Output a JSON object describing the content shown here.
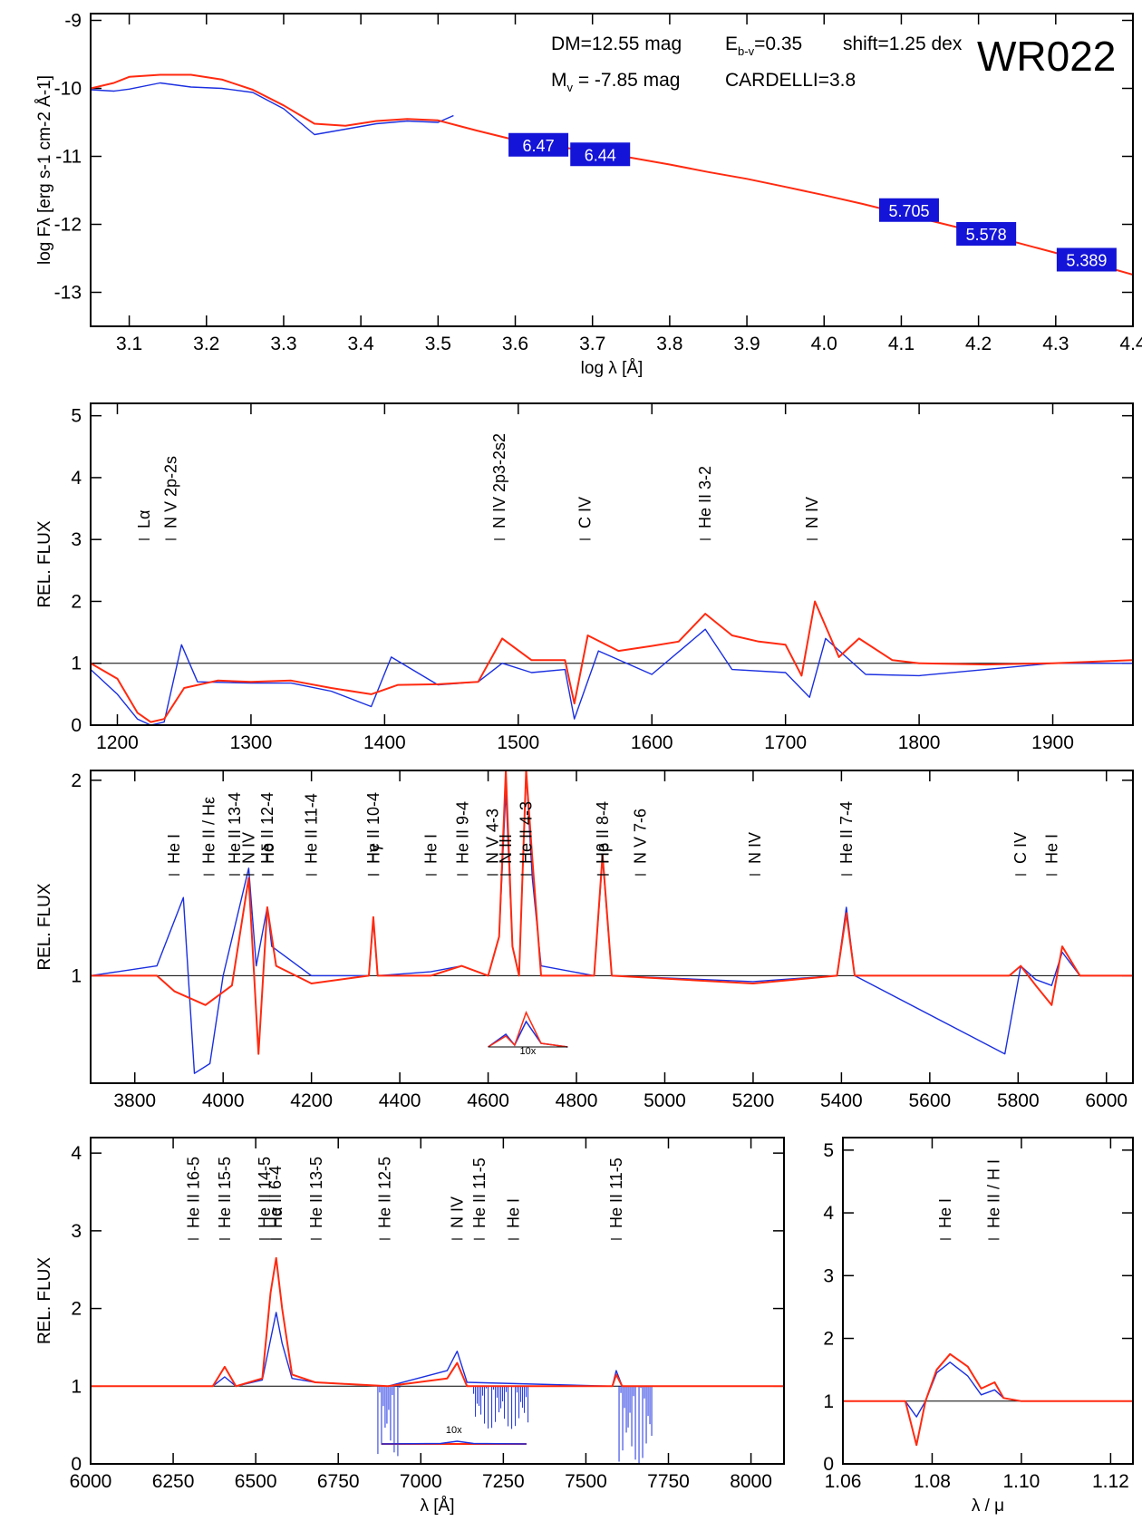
{
  "colors": {
    "model": "#ff2a10",
    "observed": "#1a2fe0",
    "label_box": "#1414d8",
    "axis": "#000000"
  },
  "chart_data": [
    {
      "type": "line",
      "id": "sed",
      "object": "WR022",
      "xlabel": "log λ [Å]",
      "ylabel": "log Fλ [erg s-1 cm-2 Å-1]",
      "xlim": [
        3.05,
        4.4
      ],
      "ylim": [
        -13.5,
        -8.9
      ],
      "xticks": [
        "3.1",
        "3.2",
        "3.3",
        "3.4",
        "3.5",
        "3.6",
        "3.7",
        "3.8",
        "3.9",
        "4.0",
        "4.1",
        "4.2",
        "4.3",
        "4.4"
      ],
      "yticks": [
        "-9",
        "-10",
        "-11",
        "-12",
        "-13"
      ],
      "info": {
        "dm": "DM=12.55 mag",
        "mv": "M",
        "mv_sub": "v",
        "mv_val": " = -7.85 mag",
        "ebv": "E",
        "ebv_sub": "b-v",
        "ebv_val": "=0.35",
        "cardelli": "CARDELLI=3.8",
        "shift": "shift=1.25 dex"
      },
      "photometry": [
        {
          "x": 3.63,
          "y": -10.83,
          "label": "6.47"
        },
        {
          "x": 3.71,
          "y": -10.97,
          "label": "6.44"
        },
        {
          "x": 4.11,
          "y": -11.79,
          "label": "5.705"
        },
        {
          "x": 4.21,
          "y": -12.14,
          "label": "5.578"
        },
        {
          "x": 4.34,
          "y": -12.52,
          "label": "5.389"
        }
      ],
      "series": [
        {
          "role": "model",
          "x": [
            3.05,
            3.08,
            3.1,
            3.14,
            3.18,
            3.22,
            3.26,
            3.3,
            3.34,
            3.38,
            3.42,
            3.46,
            3.5,
            3.55,
            3.6,
            3.65,
            3.7,
            3.75,
            3.8,
            3.85,
            3.9,
            3.95,
            4.0,
            4.05,
            4.1,
            4.15,
            4.2,
            4.25,
            4.3,
            4.35,
            4.4
          ],
          "y": [
            -10.0,
            -9.92,
            -9.83,
            -9.8,
            -9.8,
            -9.87,
            -10.02,
            -10.25,
            -10.52,
            -10.55,
            -10.48,
            -10.45,
            -10.47,
            -10.62,
            -10.76,
            -10.85,
            -10.93,
            -11.02,
            -11.12,
            -11.23,
            -11.33,
            -11.45,
            -11.57,
            -11.7,
            -11.84,
            -11.98,
            -12.12,
            -12.27,
            -12.42,
            -12.58,
            -12.74
          ]
        },
        {
          "role": "observed",
          "x": [
            3.05,
            3.08,
            3.1,
            3.14,
            3.18,
            3.22,
            3.26,
            3.3,
            3.34,
            3.38,
            3.42,
            3.46,
            3.5,
            3.52
          ],
          "y": [
            -10.02,
            -10.04,
            -10.01,
            -9.92,
            -9.98,
            -10.0,
            -10.06,
            -10.3,
            -10.68,
            -10.6,
            -10.52,
            -10.48,
            -10.5,
            -10.4
          ]
        }
      ]
    },
    {
      "type": "line",
      "id": "uv",
      "ylabel": "REL. FLUX",
      "xlim": [
        1180,
        1960
      ],
      "ylim": [
        0,
        5.2
      ],
      "xticks": [
        "1200",
        "1300",
        "1400",
        "1500",
        "1600",
        "1700",
        "1800",
        "1900"
      ],
      "yticks": [
        "0",
        "1",
        "2",
        "3",
        "4",
        "5"
      ],
      "lines": [
        {
          "x": 1220,
          "label": "Lα"
        },
        {
          "x": 1240,
          "label": "N V 2p-2s"
        },
        {
          "x": 1486,
          "label": "N IV 2p3-2s2"
        },
        {
          "x": 1550,
          "label": "C IV"
        },
        {
          "x": 1640,
          "label": "He II 3-2"
        },
        {
          "x": 1720,
          "label": "N IV"
        }
      ],
      "series": [
        {
          "role": "model",
          "x": [
            1180,
            1200,
            1215,
            1225,
            1235,
            1250,
            1275,
            1300,
            1330,
            1360,
            1390,
            1410,
            1440,
            1470,
            1488,
            1510,
            1535,
            1542,
            1552,
            1575,
            1600,
            1620,
            1640,
            1660,
            1680,
            1700,
            1712,
            1722,
            1740,
            1755,
            1780,
            1800,
            1850,
            1900,
            1960
          ],
          "y": [
            1.0,
            0.75,
            0.2,
            0.05,
            0.1,
            0.6,
            0.72,
            0.7,
            0.72,
            0.6,
            0.5,
            0.65,
            0.66,
            0.7,
            1.4,
            1.05,
            1.05,
            0.35,
            1.45,
            1.2,
            1.28,
            1.35,
            1.8,
            1.45,
            1.35,
            1.3,
            0.8,
            2.0,
            1.1,
            1.4,
            1.05,
            1.0,
            0.98,
            1.0,
            1.05
          ]
        },
        {
          "role": "observed",
          "x": [
            1180,
            1200,
            1215,
            1225,
            1235,
            1248,
            1260,
            1300,
            1330,
            1360,
            1390,
            1405,
            1440,
            1470,
            1488,
            1510,
            1535,
            1542,
            1560,
            1600,
            1640,
            1660,
            1700,
            1718,
            1730,
            1760,
            1800,
            1850,
            1900,
            1960
          ],
          "y": [
            0.9,
            0.5,
            0.1,
            0.0,
            0.05,
            1.3,
            0.7,
            0.68,
            0.68,
            0.55,
            0.3,
            1.1,
            0.65,
            0.7,
            1.0,
            0.85,
            0.9,
            0.1,
            1.2,
            0.82,
            1.55,
            0.9,
            0.85,
            0.45,
            1.4,
            0.82,
            0.8,
            0.9,
            1.0,
            1.0
          ]
        }
      ]
    },
    {
      "type": "line",
      "id": "optical",
      "ylabel": "REL. FLUX",
      "xlim": [
        3700,
        6060
      ],
      "ylim": [
        0.45,
        2.05
      ],
      "xticks": [
        "3800",
        "4000",
        "4200",
        "4400",
        "4600",
        "4800",
        "5000",
        "5200",
        "5400",
        "5600",
        "5800",
        "6000"
      ],
      "yticks": [
        "1",
        "2"
      ],
      "inset_label": "10x",
      "lines": [
        {
          "x": 3889,
          "label": "He I"
        },
        {
          "x": 3968,
          "label": "He II / Hε"
        },
        {
          "x": 4026,
          "label": "He II 13-4"
        },
        {
          "x": 4058,
          "label": "N IV"
        },
        {
          "x": 4100,
          "label": "He II 12-4"
        },
        {
          "x": 4102,
          "label": "Hδ"
        },
        {
          "x": 4200,
          "label": "He II 11-4"
        },
        {
          "x": 4340,
          "label": "He II 10-4"
        },
        {
          "x": 4341,
          "label": "Hγ"
        },
        {
          "x": 4471,
          "label": "He I"
        },
        {
          "x": 4542,
          "label": "He II 9-4"
        },
        {
          "x": 4610,
          "label": "N V 4-3"
        },
        {
          "x": 4640,
          "label": "N III"
        },
        {
          "x": 4686,
          "label": "He II 4-3"
        },
        {
          "x": 4859,
          "label": "He II 8-4"
        },
        {
          "x": 4861,
          "label": "Hβ"
        },
        {
          "x": 4945,
          "label": "N V 7-6"
        },
        {
          "x": 5204,
          "label": "N IV"
        },
        {
          "x": 5412,
          "label": "He II 7-4"
        },
        {
          "x": 5806,
          "label": "C IV"
        },
        {
          "x": 5876,
          "label": "He I"
        }
      ],
      "series": [
        {
          "role": "model",
          "x": [
            3700,
            3850,
            3890,
            3960,
            4020,
            4058,
            4080,
            4100,
            4120,
            4200,
            4330,
            4340,
            4350,
            4470,
            4540,
            4600,
            4625,
            4640,
            4655,
            4670,
            4686,
            4700,
            4720,
            4840,
            4859,
            4880,
            5200,
            5390,
            5411,
            5430,
            5780,
            5806,
            5840,
            5876,
            5900,
            5940,
            6060
          ],
          "y": [
            1.0,
            1.0,
            0.92,
            0.85,
            0.95,
            1.5,
            0.6,
            1.35,
            1.05,
            0.96,
            1.0,
            1.3,
            1.0,
            1.0,
            1.05,
            1.0,
            1.2,
            2.05,
            1.15,
            1.0,
            2.05,
            1.6,
            1.0,
            1.0,
            1.62,
            1.0,
            0.96,
            1.0,
            1.32,
            1.0,
            1.0,
            1.05,
            0.95,
            0.85,
            1.15,
            1.0,
            1.0
          ]
        },
        {
          "role": "observed",
          "x": [
            3700,
            3850,
            3910,
            3935,
            3970,
            4000,
            4058,
            4075,
            4100,
            4110,
            4200,
            4330,
            4340,
            4350,
            4470,
            4540,
            4600,
            4625,
            4640,
            4655,
            4670,
            4686,
            4700,
            4720,
            4840,
            4859,
            4880,
            5200,
            5390,
            5411,
            5430,
            5770,
            5806,
            5840,
            5876,
            5900,
            5940,
            6060
          ],
          "y": [
            1.0,
            1.05,
            1.4,
            0.5,
            0.55,
            1.0,
            1.55,
            1.05,
            1.35,
            1.15,
            1.0,
            1.0,
            1.28,
            1.0,
            1.02,
            1.05,
            1.0,
            1.2,
            1.95,
            1.15,
            1.0,
            2.05,
            1.5,
            1.05,
            1.0,
            1.6,
            1.0,
            0.97,
            1.0,
            1.35,
            1.0,
            0.6,
            1.05,
            0.98,
            0.95,
            1.12,
            1.0,
            1.0
          ]
        }
      ],
      "inset_x": [
        4600,
        4640,
        4660,
        4686,
        4720,
        4780
      ],
      "inset_model": [
        0.0,
        0.3,
        0.05,
        0.95,
        0.1,
        0.0
      ],
      "inset_observed": [
        0.0,
        0.35,
        0.05,
        0.7,
        0.1,
        0.0
      ]
    },
    {
      "type": "line",
      "id": "red",
      "ylabel": "REL. FLUX",
      "xlabel": "λ [Å]",
      "xlim": [
        6000,
        8100
      ],
      "ylim": [
        0,
        4.2
      ],
      "xticks": [
        "6000",
        "6250",
        "6500",
        "6750",
        "7000",
        "7250",
        "7500",
        "7750",
        "8000"
      ],
      "yticks": [
        "0",
        "1",
        "2",
        "3",
        "4"
      ],
      "inset_label": "10x",
      "lines": [
        {
          "x": 6311,
          "label": "He II 16-5"
        },
        {
          "x": 6406,
          "label": "He II 15-5"
        },
        {
          "x": 6527,
          "label": "He II 14-5"
        },
        {
          "x": 6560,
          "label": "He II 6-4"
        },
        {
          "x": 6563,
          "label": "Hα"
        },
        {
          "x": 6683,
          "label": "He II 13-5"
        },
        {
          "x": 6891,
          "label": "He II 12-5"
        },
        {
          "x": 7110,
          "label": "N IV"
        },
        {
          "x": 7177,
          "label": "He II 11-5"
        },
        {
          "x": 7281,
          "label": "He I"
        },
        {
          "x": 7592,
          "label": "He II 11-5"
        }
      ],
      "series": [
        {
          "role": "model",
          "x": [
            6000,
            6370,
            6406,
            6440,
            6520,
            6545,
            6562,
            6580,
            6610,
            6680,
            6900,
            7080,
            7110,
            7140,
            7580,
            7592,
            7610,
            8100
          ],
          "y": [
            1.0,
            1.0,
            1.25,
            1.0,
            1.1,
            2.2,
            2.65,
            2.0,
            1.15,
            1.05,
            1.0,
            1.1,
            1.3,
            1.0,
            1.0,
            1.15,
            1.0,
            1.0
          ]
        },
        {
          "role": "observed",
          "x": [
            6000,
            6370,
            6406,
            6440,
            6520,
            6545,
            6562,
            6580,
            6610,
            6680,
            6900,
            7080,
            7110,
            7140,
            7580,
            7592,
            7610,
            8100
          ],
          "y": [
            1.0,
            1.0,
            1.12,
            1.0,
            1.08,
            1.6,
            1.95,
            1.55,
            1.1,
            1.05,
            1.0,
            1.2,
            1.45,
            1.05,
            1.0,
            1.2,
            1.0,
            1.0
          ]
        }
      ],
      "telluric": [
        {
          "from": 6870,
          "to": 6940,
          "depth": 0.1
        },
        {
          "from": 7160,
          "to": 7330,
          "depth": 0.45
        },
        {
          "from": 7595,
          "to": 7700,
          "depth": 0.0
        }
      ]
    },
    {
      "type": "line",
      "id": "ir",
      "xlabel": "λ / μ",
      "xlim": [
        1.06,
        1.125
      ],
      "ylim": [
        0,
        5.2
      ],
      "xticks": [
        "1.06",
        "1.08",
        "1.10",
        "1.12"
      ],
      "yticks": [
        "0",
        "1",
        "2",
        "3",
        "4",
        "5"
      ],
      "lines": [
        {
          "x": 1.083,
          "label": "He I"
        },
        {
          "x": 1.0938,
          "label": "He II / H I"
        }
      ],
      "series": [
        {
          "role": "model",
          "x": [
            1.06,
            1.074,
            1.0765,
            1.0785,
            1.081,
            1.084,
            1.088,
            1.091,
            1.094,
            1.096,
            1.1,
            1.125
          ],
          "y": [
            1.0,
            1.0,
            0.3,
            1.0,
            1.5,
            1.75,
            1.55,
            1.2,
            1.3,
            1.05,
            1.0,
            1.0
          ]
        },
        {
          "role": "observed",
          "x": [
            1.06,
            1.074,
            1.0765,
            1.0785,
            1.081,
            1.084,
            1.088,
            1.091,
            1.094,
            1.096,
            1.1,
            1.125
          ],
          "y": [
            1.0,
            1.0,
            0.75,
            1.0,
            1.45,
            1.62,
            1.4,
            1.1,
            1.18,
            1.05,
            1.0,
            1.0
          ]
        }
      ]
    }
  ]
}
